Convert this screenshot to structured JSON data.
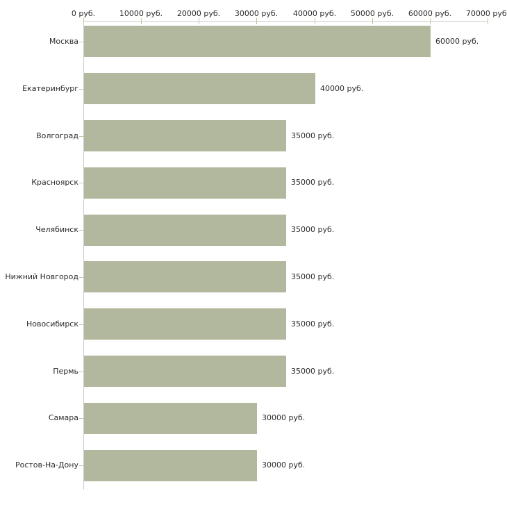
{
  "chart_data": {
    "type": "bar",
    "orientation": "horizontal",
    "title": "",
    "xlabel": "",
    "ylabel": "",
    "categories": [
      "Москва",
      "Екатеринбург",
      "Волгоград",
      "Красноярск",
      "Челябинск",
      "Нижний Новгород",
      "Новосибирск",
      "Пермь",
      "Самара",
      "Ростов-На-Дону"
    ],
    "values": [
      60000,
      40000,
      35000,
      35000,
      35000,
      35000,
      35000,
      35000,
      30000,
      30000
    ],
    "value_labels": [
      "60000 руб.",
      "40000 руб.",
      "35000 руб.",
      "35000 руб.",
      "35000 руб.",
      "35000 руб.",
      "35000 руб.",
      "35000 руб.",
      "30000 руб.",
      "30000 руб."
    ],
    "unit": "руб.",
    "x_tick_labels": [
      "0 руб.",
      "10000 руб.",
      "20000 руб.",
      "30000 руб.",
      "40000 руб.",
      "50000 руб.",
      "60000 руб.",
      "70000 руб."
    ],
    "xlim": [
      0,
      70000
    ],
    "x_tick_step": 10000,
    "grid": false,
    "legend": false,
    "colors": {
      "bar": "#b1b89d",
      "axis_line": "#cccccc",
      "tick": "#c2c79c",
      "text": "#2b2b2b",
      "background": "#ffffff"
    }
  }
}
